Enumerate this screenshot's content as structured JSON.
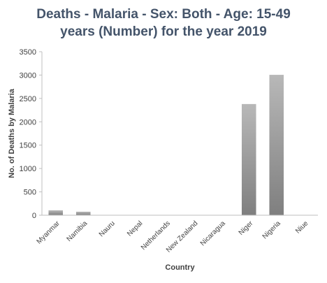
{
  "chart_data": {
    "type": "bar",
    "title_lines": [
      "Deaths - Malaria - Sex: Both - Age: 15-49",
      "years (Number) for the year 2019"
    ],
    "xlabel": "Country",
    "ylabel": "No. of Deaths by Malaria",
    "categories": [
      "Myanmar",
      "Namibia",
      "Nauru",
      "Nepal",
      "Netherlands",
      "New Zealand",
      "Nicaragua",
      "Niger",
      "Nigeria",
      "Niue"
    ],
    "values": [
      105,
      75,
      0,
      0,
      0,
      0,
      0,
      2380,
      3005,
      0
    ],
    "ylim": [
      0,
      3500
    ],
    "yticks": [
      0,
      500,
      1000,
      1500,
      2000,
      2500,
      3000,
      3500
    ],
    "ytick_labels": [
      "0",
      "500",
      "1000",
      "1500",
      "2000",
      "2500",
      "3000",
      "3500"
    ],
    "grid": false,
    "legend": "none",
    "colors": {
      "bar_light": "#b8b8b8",
      "bar_dark": "#7f7f7f",
      "axis": "#bfbfbf",
      "title": "#44546a"
    }
  }
}
